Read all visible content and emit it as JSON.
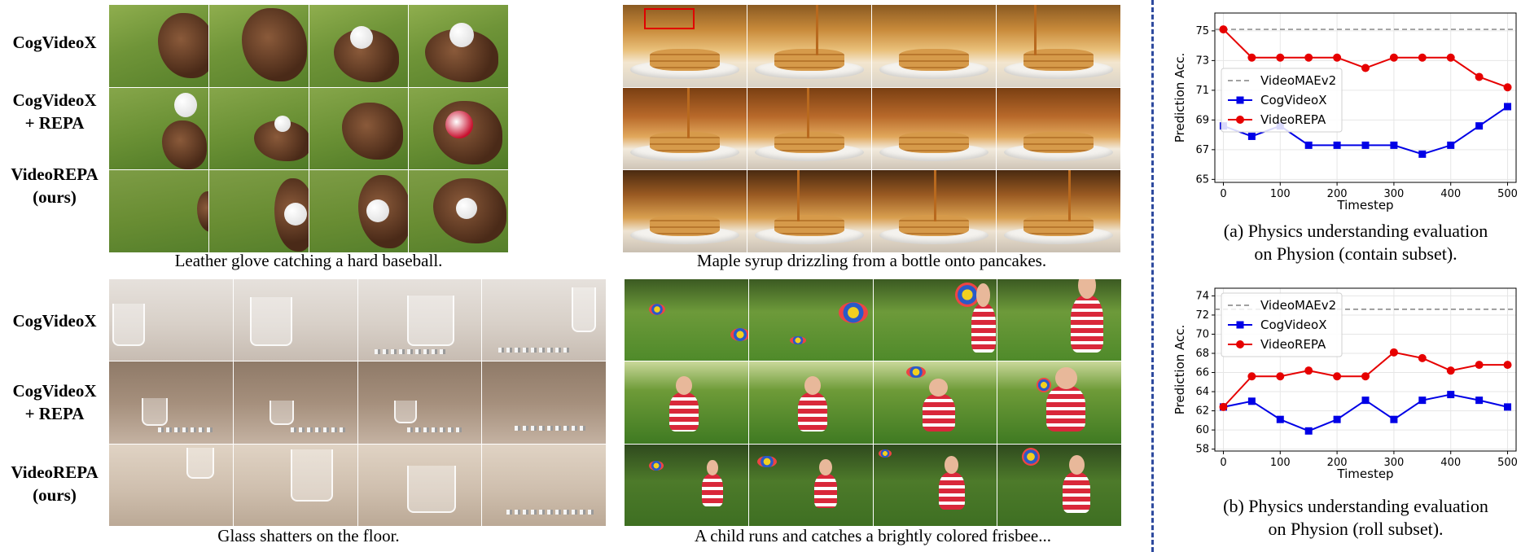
{
  "row_labels": {
    "cogvideox": "CogVideoX",
    "cogvideox_repa_line1": "CogVideoX",
    "cogvideox_repa_line2": "+ REPA",
    "videorepa_line1": "VideoREPA",
    "videorepa_line2": "(ours)"
  },
  "captions": {
    "glove": "Leather glove catching a hard baseball.",
    "syrup": "Maple syrup drizzling from a bottle onto pancakes.",
    "glass": "Glass shatters on the floor.",
    "frisbee": "A child runs and catches a brightly colored frisbee..."
  },
  "chart_data": [
    {
      "type": "line",
      "caption_line1": "(a) Physics understanding evaluation",
      "caption_line2": "on Physion (contain subset).",
      "xlabel": "Timestep",
      "ylabel": "Prediction Acc.",
      "x": [
        0,
        50,
        100,
        150,
        200,
        250,
        300,
        350,
        400,
        450,
        500
      ],
      "xticks": [
        0,
        100,
        200,
        300,
        400,
        500
      ],
      "yticks": [
        65,
        67,
        69,
        71,
        73,
        75
      ],
      "ylim": [
        64.8,
        76.2
      ],
      "xlim": [
        -15,
        515
      ],
      "grid": true,
      "legend_position": "middle-left",
      "reference": {
        "name": "VideoMAEv2",
        "value": 75.1,
        "color": "#808080"
      },
      "series": [
        {
          "name": "CogVideoX",
          "color": "#0000e6",
          "marker": "square",
          "values": [
            68.6,
            67.9,
            68.6,
            67.3,
            67.3,
            67.3,
            67.3,
            66.7,
            67.3,
            68.6,
            69.9
          ]
        },
        {
          "name": "VideoREPA",
          "color": "#e60000",
          "marker": "circle",
          "values": [
            75.1,
            73.2,
            73.2,
            73.2,
            73.2,
            72.5,
            73.2,
            73.2,
            73.2,
            71.9,
            71.2
          ]
        }
      ]
    },
    {
      "type": "line",
      "caption_line1": "(b) Physics understanding evaluation",
      "caption_line2": "on Physion (roll subset).",
      "xlabel": "Timestep",
      "ylabel": "Prediction Acc.",
      "x": [
        0,
        50,
        100,
        150,
        200,
        250,
        300,
        350,
        400,
        450,
        500
      ],
      "xticks": [
        0,
        100,
        200,
        300,
        400,
        500
      ],
      "yticks": [
        58,
        60,
        62,
        64,
        66,
        68,
        70,
        72,
        74
      ],
      "ylim": [
        57.8,
        74.8
      ],
      "xlim": [
        -15,
        515
      ],
      "grid": true,
      "legend_position": "top-left",
      "reference": {
        "name": "VideoMAEv2",
        "value": 72.6,
        "color": "#808080"
      },
      "series": [
        {
          "name": "CogVideoX",
          "color": "#0000e6",
          "marker": "square",
          "values": [
            62.4,
            63.0,
            61.1,
            59.9,
            61.1,
            63.1,
            61.1,
            63.1,
            63.7,
            63.1,
            62.4
          ]
        },
        {
          "name": "VideoREPA",
          "color": "#e60000",
          "marker": "circle",
          "values": [
            62.4,
            65.6,
            65.6,
            66.2,
            65.6,
            65.6,
            68.1,
            67.5,
            66.2,
            66.8,
            66.8
          ]
        }
      ]
    }
  ]
}
